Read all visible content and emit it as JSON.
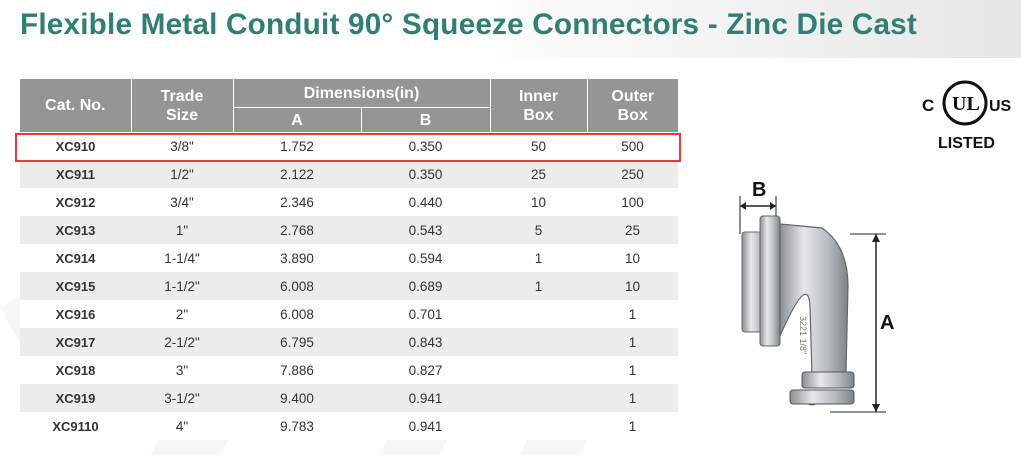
{
  "title": "Flexible Metal Conduit 90° Squeeze Connectors - Zinc Die Cast",
  "table": {
    "headers": {
      "cat_no": "Cat. No.",
      "trade_size_1": "Trade",
      "trade_size_2": "Size",
      "dimensions": "Dimensions(in)",
      "dim_a": "A",
      "dim_b": "B",
      "inner_1": "Inner",
      "inner_2": "Box",
      "outer_1": "Outer",
      "outer_2": "Box"
    },
    "rows": [
      {
        "cat": "XC910",
        "size": "3/8\"",
        "a": "1.752",
        "b": "0.350",
        "inner": "50",
        "outer": "500"
      },
      {
        "cat": "XC911",
        "size": "1/2\"",
        "a": "2.122",
        "b": "0.350",
        "inner": "25",
        "outer": "250"
      },
      {
        "cat": "XC912",
        "size": "3/4\"",
        "a": "2.346",
        "b": "0.440",
        "inner": "10",
        "outer": "100"
      },
      {
        "cat": "XC913",
        "size": "1\"",
        "a": "2.768",
        "b": "0.543",
        "inner": "5",
        "outer": "25"
      },
      {
        "cat": "XC914",
        "size": "1-1/4\"",
        "a": "3.890",
        "b": "0.594",
        "inner": "1",
        "outer": "10"
      },
      {
        "cat": "XC915",
        "size": "1-1/2\"",
        "a": "6.008",
        "b": "0.689",
        "inner": "1",
        "outer": "10"
      },
      {
        "cat": "XC916",
        "size": "2\"",
        "a": "6.008",
        "b": "0.701",
        "inner": "",
        "outer": "1"
      },
      {
        "cat": "XC917",
        "size": "2-1/2\"",
        "a": "6.795",
        "b": "0.843",
        "inner": "",
        "outer": "1"
      },
      {
        "cat": "XC918",
        "size": "3\"",
        "a": "7.886",
        "b": "0.827",
        "inner": "",
        "outer": "1"
      },
      {
        "cat": "XC919",
        "size": "3-1/2\"",
        "a": "9.400",
        "b": "0.941",
        "inner": "",
        "outer": "1"
      },
      {
        "cat": "XC9110",
        "size": "4\"",
        "a": "9.783",
        "b": "0.941",
        "inner": "",
        "outer": "1"
      }
    ]
  },
  "ul_mark": {
    "c": "C",
    "ul": "UL",
    "us": "US",
    "listed": "LISTED"
  },
  "figure": {
    "label_b": "B",
    "label_a": "A",
    "stamp": "3221 1/8\""
  },
  "colors": {
    "title": "#2f7f74",
    "header_bg": "#959595",
    "highlight": "#e83a3a",
    "stripe": "#ececec"
  }
}
